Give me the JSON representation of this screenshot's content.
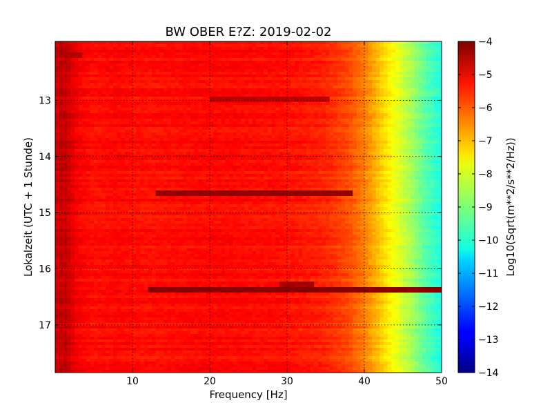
{
  "chart_data": {
    "type": "heatmap",
    "title": "BW OBER E?Z: 2019-02-02",
    "xlabel": "Frequency [Hz]",
    "ylabel": "Lokalzeit (UTC + 1 Stunde)",
    "xlim": [
      0,
      50
    ],
    "ylim": [
      17.85,
      11.95
    ],
    "y_axis_inverted": true,
    "x_ticks": [
      {
        "value": 10,
        "label": "10"
      },
      {
        "value": 20,
        "label": "20"
      },
      {
        "value": 30,
        "label": "30"
      },
      {
        "value": 40,
        "label": "40"
      },
      {
        "value": 50,
        "label": "50"
      }
    ],
    "y_ticks": [
      {
        "value": 13,
        "label": "13"
      },
      {
        "value": 14,
        "label": "14"
      },
      {
        "value": 15,
        "label": "15"
      },
      {
        "value": 16,
        "label": "16"
      },
      {
        "value": 17,
        "label": "17"
      }
    ],
    "grid": true,
    "colormap": "jet",
    "colorbar": {
      "label": "Log10(Sqrt(m**2/s**2/Hz))",
      "range": [
        -14,
        -4
      ],
      "ticks": [
        "-4",
        "-5",
        "-6",
        "-7",
        "-8",
        "-9",
        "-10",
        "-11",
        "-12",
        "-13",
        "-14"
      ]
    },
    "spectral_profile": {
      "frequency_hz": [
        0,
        1,
        3,
        5,
        8,
        12,
        20,
        30,
        35,
        38,
        40,
        42,
        44,
        46,
        48,
        50
      ],
      "log10_amplitude": [
        -4.9,
        -4.6,
        -5.2,
        -5.4,
        -5.3,
        -5.4,
        -5.3,
        -5.4,
        -5.6,
        -6.0,
        -6.5,
        -7.2,
        -7.9,
        -8.6,
        -9.4,
        -10.0
      ]
    },
    "strong_bands": [
      {
        "time": 14.65,
        "freq_from": 13,
        "freq_to": 38,
        "log10_amplitude": -4.2
      },
      {
        "time": 16.38,
        "freq_from": 12,
        "freq_to": 50,
        "log10_amplitude": -4.1
      },
      {
        "time": 13.0,
        "freq_from": 20,
        "freq_to": 35,
        "log10_amplitude": -4.6
      },
      {
        "time": 16.27,
        "freq_from": 29,
        "freq_to": 33,
        "log10_amplitude": -4.4
      },
      {
        "time": 12.2,
        "freq_from": 0.5,
        "freq_to": 3,
        "log10_amplitude": -4.5
      }
    ]
  }
}
